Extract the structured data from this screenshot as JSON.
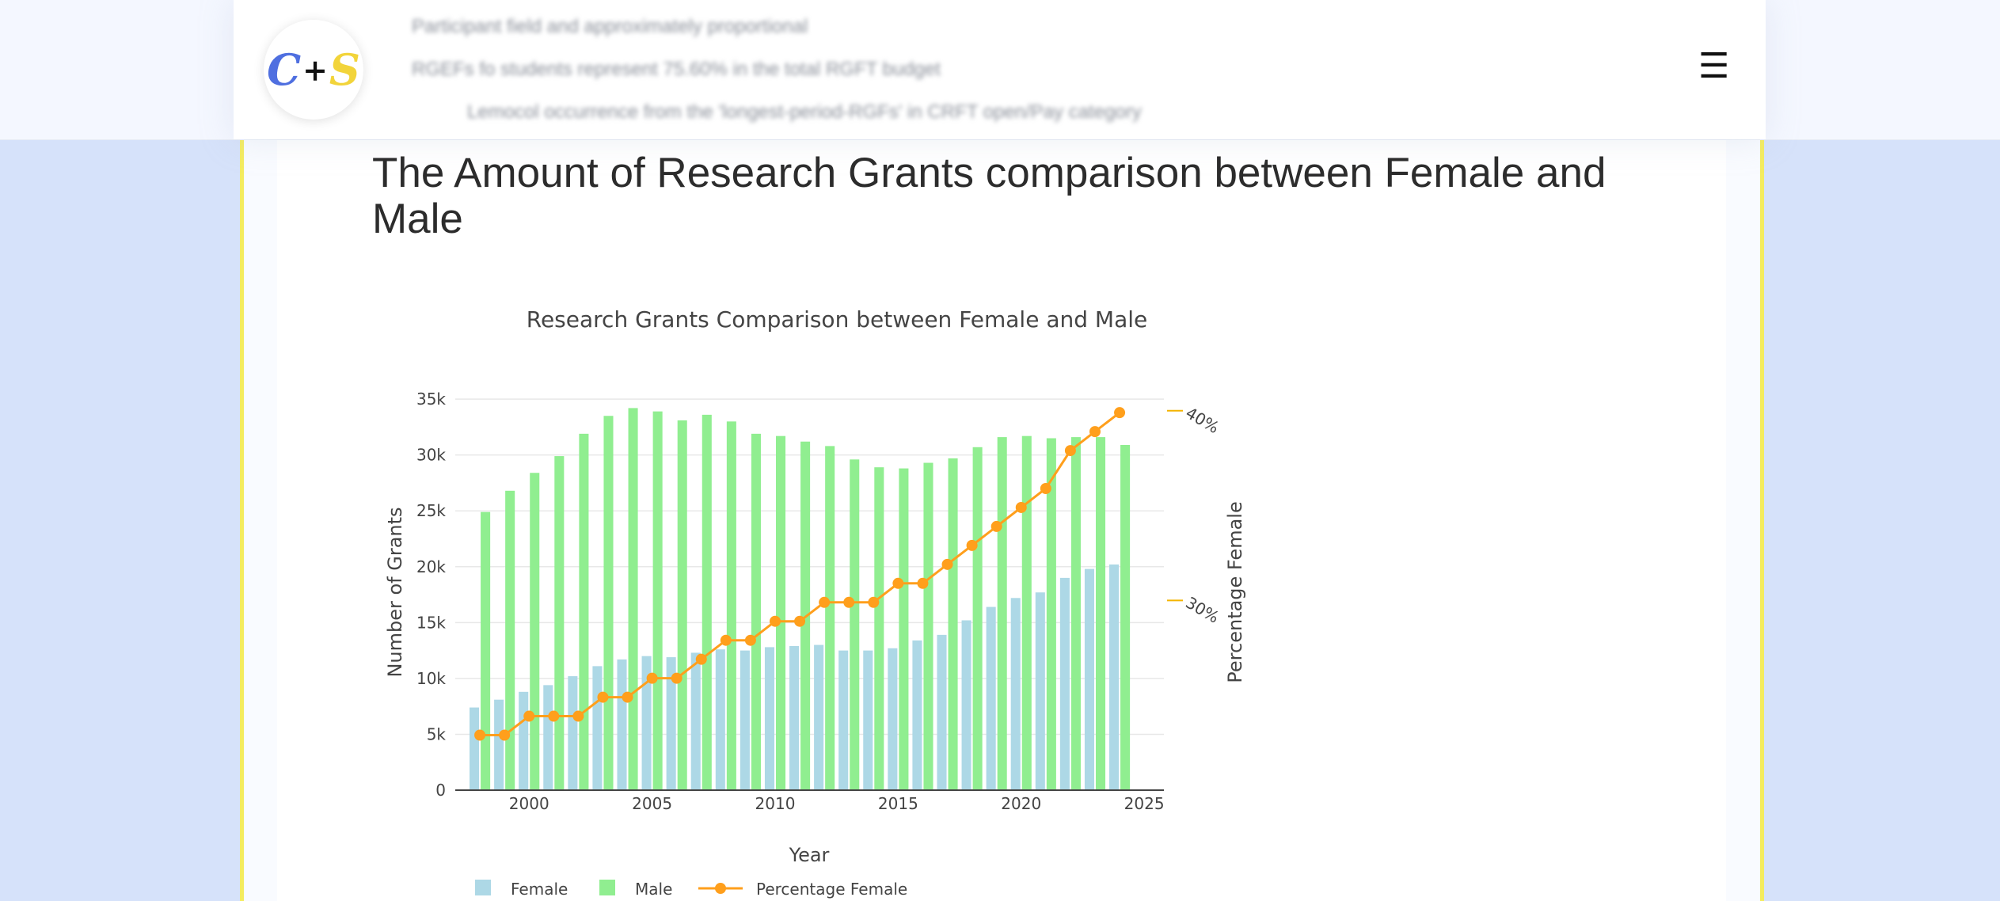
{
  "page": {
    "title": "The Amount of Research Grants comparison between Female and Male",
    "blurred_lines": [
      "Participant field and approximately proportional",
      "RGEFs fo students represent 75.60% in the total RGFT budget",
      "Lemocol occurrence from the 'longest-period-RGFs' in CRFT open/Pay category"
    ]
  },
  "header": {
    "logo_c": "C",
    "logo_plus": "+",
    "logo_s": "S",
    "menu_icon": "☰"
  },
  "chart_data": {
    "type": "bar",
    "title": "Research Grants Comparison between Female and Male",
    "xlabel": "Year",
    "ylabel": "Number of Grants",
    "y2label": "Percentage Female",
    "x": [
      1998,
      1999,
      2000,
      2001,
      2002,
      2003,
      2004,
      2005,
      2006,
      2007,
      2008,
      2009,
      2010,
      2011,
      2012,
      2013,
      2014,
      2015,
      2016,
      2017,
      2018,
      2019,
      2020,
      2021,
      2022,
      2023,
      2024
    ],
    "series": [
      {
        "name": "Female",
        "type": "bar",
        "color": "#add8e6",
        "values": [
          7400,
          8100,
          8800,
          9400,
          10200,
          11100,
          11700,
          12000,
          11900,
          12300,
          12600,
          12500,
          12800,
          12900,
          13000,
          12500,
          12500,
          12700,
          13400,
          13900,
          15200,
          16400,
          17200,
          17700,
          19000,
          19800,
          20200
        ]
      },
      {
        "name": "Male",
        "type": "bar",
        "color": "#90ee90",
        "values": [
          24900,
          26800,
          28400,
          29900,
          31900,
          33500,
          34200,
          33900,
          33100,
          33600,
          33000,
          31900,
          31700,
          31200,
          30800,
          29600,
          28900,
          28800,
          29300,
          29700,
          30700,
          31600,
          31700,
          31500,
          31600,
          31600,
          30900
        ]
      },
      {
        "name": "Percentage Female",
        "type": "line",
        "axis": "y2",
        "color": "#ff9f1c",
        "values": [
          22.9,
          22.9,
          23.9,
          23.9,
          23.9,
          24.9,
          24.9,
          25.9,
          25.9,
          26.9,
          27.9,
          27.9,
          28.9,
          28.9,
          29.9,
          29.9,
          29.9,
          30.9,
          30.9,
          31.9,
          32.9,
          33.9,
          34.9,
          35.9,
          37.9,
          38.9,
          39.9
        ]
      }
    ],
    "xlim": [
      1997,
      2025.8
    ],
    "xticks": [
      "2000",
      "2005",
      "2010",
      "2015",
      "2020",
      "2025"
    ],
    "ylim": [
      0,
      36000
    ],
    "yticks": [
      "0",
      "5k",
      "10k",
      "15k",
      "20k",
      "25k",
      "30k",
      "35k"
    ],
    "y2lim": [
      20,
      41.2
    ],
    "y2ticks": [
      "30%",
      "40%"
    ],
    "legend": [
      "Female",
      "Male",
      "Percentage Female"
    ],
    "legend_position": "bottom",
    "grid": true
  }
}
